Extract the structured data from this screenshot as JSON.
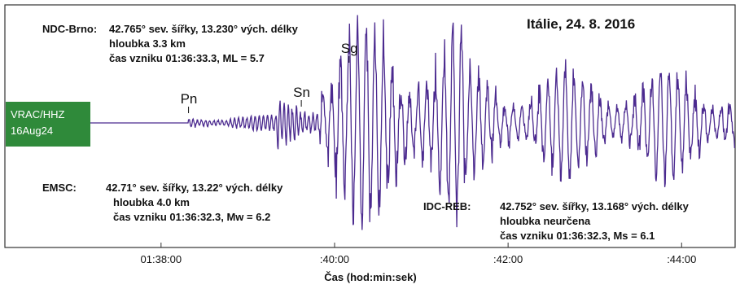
{
  "chart_data": {
    "type": "line",
    "title": "Itálie, 24. 8. 2016",
    "xlabel": "Čas (hod:min:sek)",
    "ylabel": "",
    "x_ticks": [
      "01:38:00",
      ":40:00",
      ":42:00",
      ":44:00"
    ],
    "x_tick_seconds": [
      5880,
      6000,
      6120,
      6240
    ],
    "xlim_seconds": [
      5772,
      6277
    ],
    "station": {
      "line1": "VRAC/HHZ",
      "line2": "16Aug24"
    },
    "phases": [
      {
        "name": "Pn",
        "time_seconds": 5899
      },
      {
        "name": "Sn",
        "time_seconds": 5977
      },
      {
        "name": "Sg",
        "time_seconds": 6010
      }
    ],
    "series": [
      {
        "color": "#4b2a8f",
        "description_segments": [
          {
            "from": 5772,
            "to": 5899,
            "amplitude": 0.0
          },
          {
            "from": 5899,
            "to": 5960,
            "amplitude": 0.08
          },
          {
            "from": 5960,
            "to": 5990,
            "amplitude": 0.3
          },
          {
            "from": 5990,
            "to": 6090,
            "amplitude": 1.0
          },
          {
            "from": 6090,
            "to": 6277,
            "amplitude": 0.55
          }
        ]
      }
    ]
  },
  "annotations": {
    "ndc": {
      "label": "NDC-Brno:",
      "line1": "42.765° sev. šířky, 13.230° vých. délky",
      "line2": "hloubka 3.3 km",
      "line3": "čas vzniku 01:36:33.3, ML = 5.7"
    },
    "emsc": {
      "label": "EMSC:",
      "line1": "42.71° sev. šířky, 13.22° vých. délky",
      "line2": "hloubka 4.0 km",
      "line3": "čas vzniku 01:36:32.3, Mw = 6.2"
    },
    "idc": {
      "label": "IDC-REB:",
      "line1": "42.752° sev. šířky, 13.168° vých. délky",
      "line2": "hloubka neurčena",
      "line3": "čas vzniku 01:36:32.3, Ms = 6.1"
    }
  },
  "colors": {
    "trace": "#4b2a8f",
    "station_bg": "#2f8a3a",
    "frame": "#333333"
  }
}
